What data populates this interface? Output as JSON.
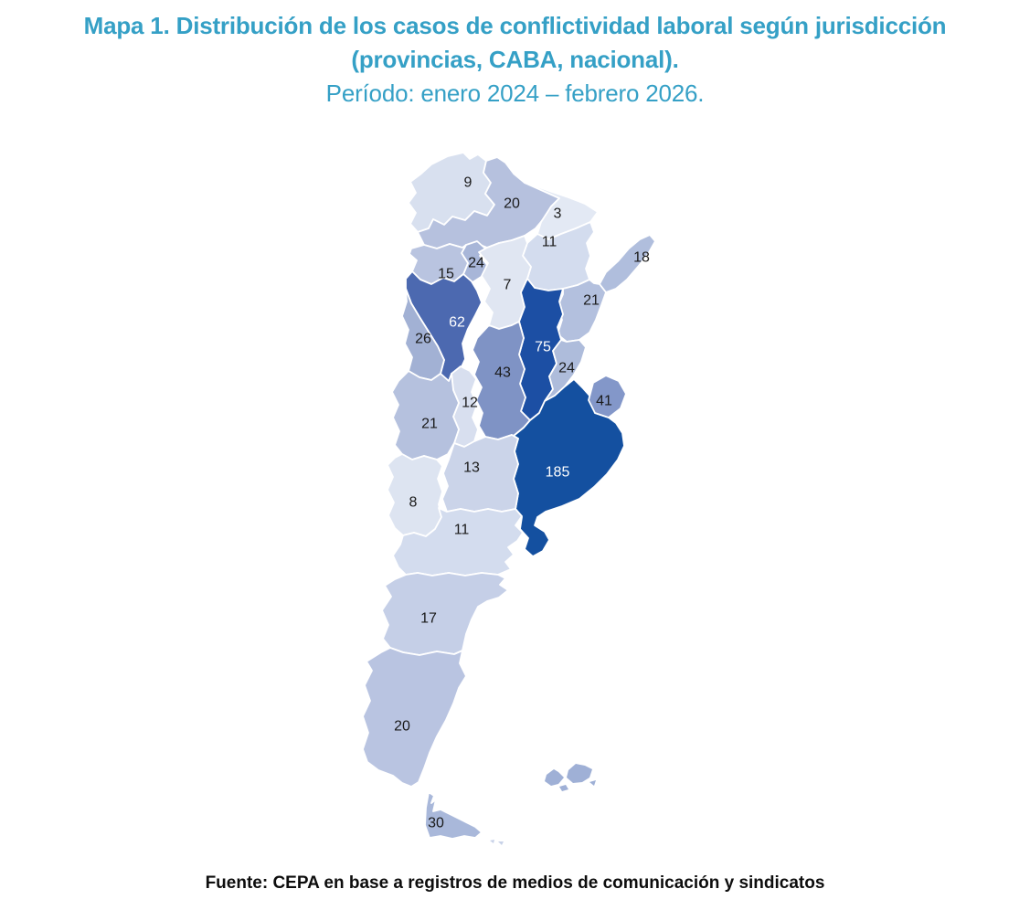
{
  "title": {
    "line1": "Mapa 1. Distribución de los casos de conflictividad laboral según jurisdicción",
    "line2": "(provincias, CABA, nacional).",
    "line3": "Período: enero 2024 – febrero 2026.",
    "color": "#35a0c6"
  },
  "footer": {
    "source": "Fuente: CEPA en base a registros de medios de comunicación y sindicatos"
  },
  "chart_data": {
    "type": "choropleth-map",
    "geography": "Argentina (provincias, CABA)",
    "measure": "casos de conflictividad laboral",
    "min_value": 3,
    "max_value": 185,
    "palette": {
      "low": "#e3e9f4",
      "high": "#1450a0",
      "boundary": "#ffffff"
    },
    "regions": [
      {
        "id": "jujuy",
        "name": "Jujuy",
        "value": 9,
        "fill": "#d8e0ef",
        "label_color": "#1a1a1a"
      },
      {
        "id": "salta",
        "name": "Salta",
        "value": 20,
        "fill": "#b6c1de",
        "label_color": "#1a1a1a"
      },
      {
        "id": "formosa",
        "name": "Formosa",
        "value": 3,
        "fill": "#e3e9f4",
        "label_color": "#1a1a1a"
      },
      {
        "id": "chaco",
        "name": "Chaco",
        "value": 11,
        "fill": "#d3dcee",
        "label_color": "#1a1a1a"
      },
      {
        "id": "misiones",
        "name": "Misiones",
        "value": 18,
        "fill": "#b0bedd",
        "label_color": "#1a1a1a"
      },
      {
        "id": "tucuman",
        "name": "Tucumán",
        "value": 24,
        "fill": "#a8b6d8",
        "label_color": "#1a1a1a"
      },
      {
        "id": "catamarca",
        "name": "Catamarca",
        "value": 15,
        "fill": "#b9c4e0",
        "label_color": "#1a1a1a"
      },
      {
        "id": "santiago_del_estero",
        "name": "Santiago del Estero",
        "value": 7,
        "fill": "#e0e6f2",
        "label_color": "#1a1a1a"
      },
      {
        "id": "corrientes",
        "name": "Corrientes",
        "value": 21,
        "fill": "#b3c0de",
        "label_color": "#1a1a1a"
      },
      {
        "id": "la_rioja",
        "name": "La Rioja",
        "value": 62,
        "fill": "#4c69b0",
        "label_color": "#ffffff"
      },
      {
        "id": "san_juan",
        "name": "San Juan",
        "value": 26,
        "fill": "#a2b1d4",
        "label_color": "#1a1a1a"
      },
      {
        "id": "santa_fe",
        "name": "Santa Fe",
        "value": 75,
        "fill": "#1c4fa4",
        "label_color": "#ffffff"
      },
      {
        "id": "cordoba",
        "name": "Córdoba",
        "value": 43,
        "fill": "#7f93c5",
        "label_color": "#1a1a1a"
      },
      {
        "id": "entre_rios",
        "name": "Entre Ríos",
        "value": 24,
        "fill": "#aebcdb",
        "label_color": "#1a1a1a"
      },
      {
        "id": "san_luis",
        "name": "San Luis",
        "value": 12,
        "fill": "#d8dfef",
        "label_color": "#1a1a1a"
      },
      {
        "id": "mendoza",
        "name": "Mendoza",
        "value": 21,
        "fill": "#b5c1de",
        "label_color": "#1a1a1a"
      },
      {
        "id": "buenos_aires",
        "name": "Buenos Aires",
        "value": 185,
        "fill": "#1450a0",
        "label_color": "#ffffff"
      },
      {
        "id": "la_pampa",
        "name": "La Pampa",
        "value": 13,
        "fill": "#cbd4e9",
        "label_color": "#1a1a1a"
      },
      {
        "id": "neuquen",
        "name": "Neuquén",
        "value": 8,
        "fill": "#dde4f1",
        "label_color": "#1a1a1a"
      },
      {
        "id": "rio_negro",
        "name": "Río Negro",
        "value": 11,
        "fill": "#d3dcee",
        "label_color": "#1a1a1a"
      },
      {
        "id": "chubut",
        "name": "Chubut",
        "value": 17,
        "fill": "#c5cfe7",
        "label_color": "#1a1a1a"
      },
      {
        "id": "santa_cruz",
        "name": "Santa Cruz",
        "value": 20,
        "fill": "#b9c4e1",
        "label_color": "#1a1a1a"
      },
      {
        "id": "tierra_del_fuego",
        "name": "Tierra del Fuego",
        "value": 30,
        "fill": "#a9b8da",
        "label_color": "#1a1a1a"
      },
      {
        "id": "caba",
        "name": "CABA",
        "value": 41,
        "fill": "#8397c9",
        "label_color": "#1a1a1a"
      }
    ],
    "islands": [
      {
        "id": "malvinas",
        "name": "Islas Malvinas",
        "fill": "#9fb0d6"
      },
      {
        "id": "isla_de_los_estados",
        "name": "Isla de los Estados",
        "fill": "#c8d2e8"
      }
    ]
  }
}
